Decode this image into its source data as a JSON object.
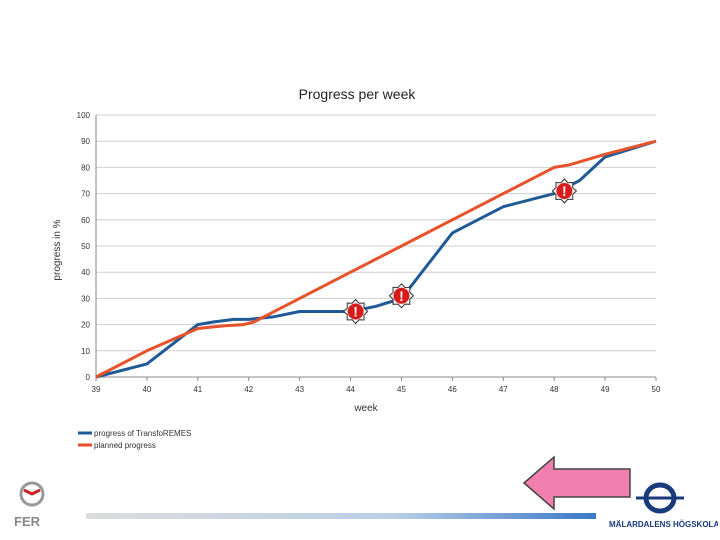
{
  "chart_data": {
    "type": "line",
    "title": "Progress per week",
    "xlabel": "week",
    "ylabel": "progress in %",
    "xlim": [
      39,
      50
    ],
    "ylim": [
      0,
      100
    ],
    "x_ticks": [
      39,
      40,
      41,
      42,
      43,
      44,
      45,
      46,
      47,
      48,
      49,
      50
    ],
    "y_ticks": [
      0,
      10,
      20,
      30,
      40,
      50,
      60,
      70,
      80,
      90,
      100
    ],
    "grid": true,
    "legend_position": "bottom-left",
    "series": [
      {
        "name": "progress of TransfoREMES",
        "color": "#1f5a96",
        "points": [
          [
            39,
            0
          ],
          [
            40,
            5
          ],
          [
            41,
            20
          ],
          [
            41.3,
            21
          ],
          [
            41.7,
            22
          ],
          [
            42,
            22
          ],
          [
            42.5,
            23
          ],
          [
            43,
            25
          ],
          [
            43.5,
            25
          ],
          [
            44,
            25
          ],
          [
            44.5,
            27
          ],
          [
            45,
            30
          ],
          [
            46,
            55
          ],
          [
            47,
            65
          ],
          [
            48,
            70
          ],
          [
            48.5,
            75
          ],
          [
            49,
            84
          ],
          [
            50,
            90
          ]
        ]
      },
      {
        "name": "planned progress",
        "color": "#e8522a",
        "points": [
          [
            39,
            0
          ],
          [
            40,
            10
          ],
          [
            41,
            18.5
          ],
          [
            41.5,
            19.5
          ],
          [
            41.9,
            20
          ],
          [
            42.1,
            21
          ],
          [
            43,
            30
          ],
          [
            44,
            40
          ],
          [
            45,
            50
          ],
          [
            46,
            60
          ],
          [
            47,
            70
          ],
          [
            48,
            80
          ],
          [
            48.3,
            81
          ],
          [
            49,
            85
          ],
          [
            50,
            90
          ]
        ]
      }
    ],
    "markers": [
      {
        "symbol": "!",
        "x": 44.1,
        "y": 25
      },
      {
        "symbol": "!",
        "x": 45.0,
        "y": 31
      },
      {
        "symbol": "!",
        "x": 48.2,
        "y": 71
      }
    ]
  },
  "decorations": {
    "left_logo_text": "FER",
    "right_logo_text": "MÄLARDALENS HÖGSKOLA",
    "arrow_color": "#f07fae",
    "footer_bar_color": "#3a78c8"
  }
}
